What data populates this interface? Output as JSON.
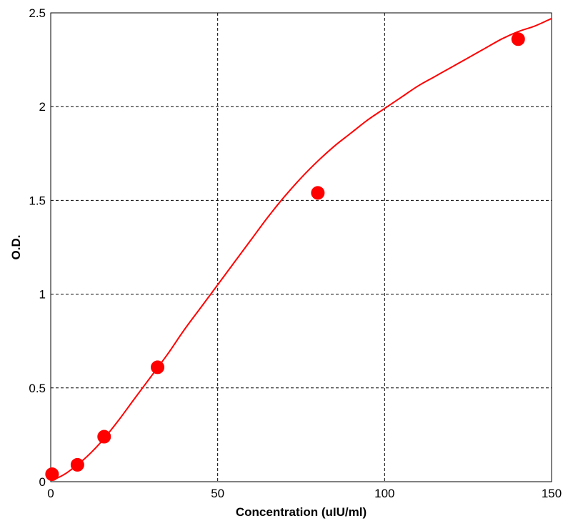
{
  "chart_data": {
    "type": "scatter",
    "title": "",
    "xlabel": "Concentration (uIU/ml)",
    "ylabel": "O.D.",
    "xlim": [
      0,
      150
    ],
    "ylim": [
      0,
      2.5
    ],
    "x_ticks": [
      0,
      50,
      100,
      150
    ],
    "y_ticks": [
      0,
      0.5,
      1,
      1.5,
      2,
      2.5
    ],
    "x_tick_labels": [
      "0",
      "50",
      "100",
      "150"
    ],
    "y_tick_labels": [
      "0",
      "0.5",
      "1",
      "1.5",
      "2",
      "2.5"
    ],
    "grid": true,
    "grid_style": "dashed",
    "legend": "none",
    "series": [
      {
        "kind": "points",
        "color": "#ff0000",
        "x": [
          0.4,
          8,
          16,
          32,
          80,
          140
        ],
        "y": [
          0.04,
          0.09,
          0.24,
          0.61,
          1.54,
          2.36
        ]
      },
      {
        "kind": "fitted-curve",
        "color": "#ff0000",
        "x": [
          0,
          2,
          5,
          10,
          15,
          20,
          25,
          30,
          35,
          40,
          45,
          50,
          55,
          60,
          65,
          70,
          75,
          80,
          85,
          90,
          95,
          100,
          105,
          110,
          115,
          120,
          125,
          130,
          135,
          140,
          145,
          150
        ],
        "y": [
          0.01,
          0.02,
          0.05,
          0.12,
          0.21,
          0.32,
          0.44,
          0.56,
          0.68,
          0.81,
          0.93,
          1.05,
          1.17,
          1.29,
          1.41,
          1.52,
          1.62,
          1.71,
          1.79,
          1.86,
          1.93,
          1.99,
          2.05,
          2.11,
          2.16,
          2.21,
          2.26,
          2.31,
          2.36,
          2.4,
          2.43,
          2.47
        ]
      }
    ]
  }
}
